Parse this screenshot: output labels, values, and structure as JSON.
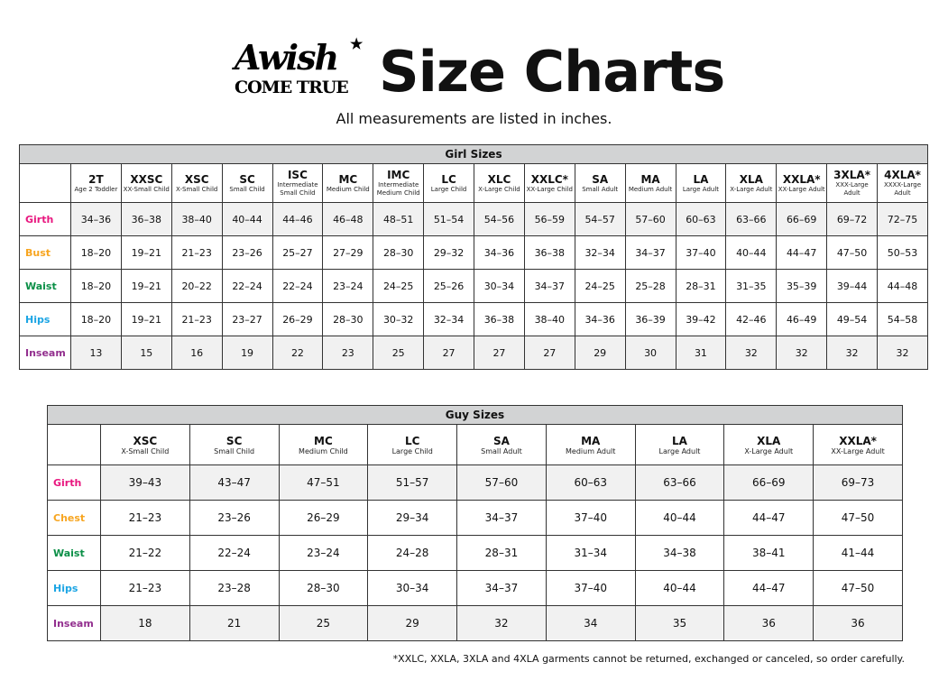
{
  "logo": {
    "line1": "Awish",
    "line2": "COME TRUE"
  },
  "title": "Size Charts",
  "subtitle": "All measurements are listed in inches.",
  "girl": {
    "title": "Girl Sizes",
    "sizes": [
      [
        "2T",
        "Age 2 Toddler"
      ],
      [
        "XXSC",
        "XX-Small Child"
      ],
      [
        "XSC",
        "X-Small Child"
      ],
      [
        "SC",
        "Small Child"
      ],
      [
        "ISC",
        "Intermediate Small Child"
      ],
      [
        "MC",
        "Medium Child"
      ],
      [
        "IMC",
        "Intermediate Medium Child"
      ],
      [
        "LC",
        "Large Child"
      ],
      [
        "XLC",
        "X-Large Child"
      ],
      [
        "XXLC*",
        "XX-Large Child"
      ],
      [
        "SA",
        "Small Adult"
      ],
      [
        "MA",
        "Medium Adult"
      ],
      [
        "LA",
        "Large Adult"
      ],
      [
        "XLA",
        "X-Large Adult"
      ],
      [
        "XXLA*",
        "XX-Large Adult"
      ],
      [
        "3XLA*",
        "XXX-Large Adult"
      ],
      [
        "4XLA*",
        "XXXX-Large Adult"
      ]
    ],
    "rows": [
      {
        "label": "Girth",
        "color": "#e8177f",
        "values": [
          "34–36",
          "36–38",
          "38–40",
          "40–44",
          "44–46",
          "46–48",
          "48–51",
          "51–54",
          "54–56",
          "56–59",
          "54–57",
          "57–60",
          "60–63",
          "63–66",
          "66–69",
          "69–72",
          "72–75"
        ]
      },
      {
        "label": "Bust",
        "color": "#f7a520",
        "values": [
          "18–20",
          "19–21",
          "21–23",
          "23–26",
          "25–27",
          "27–29",
          "28–30",
          "29–32",
          "34–36",
          "36–38",
          "32–34",
          "34–37",
          "37–40",
          "40–44",
          "44–47",
          "47–50",
          "50–53"
        ]
      },
      {
        "label": "Waist",
        "color": "#0b8f47",
        "values": [
          "18–20",
          "19–21",
          "20–22",
          "22–24",
          "22–24",
          "23–24",
          "24–25",
          "25–26",
          "30–34",
          "34–37",
          "24–25",
          "25–28",
          "28–31",
          "31–35",
          "35–39",
          "39–44",
          "44–48"
        ]
      },
      {
        "label": "Hips",
        "color": "#1ca5e4",
        "values": [
          "18–20",
          "19–21",
          "21–23",
          "23–27",
          "26–29",
          "28–30",
          "30–32",
          "32–34",
          "36–38",
          "38–40",
          "34–36",
          "36–39",
          "39–42",
          "42–46",
          "46–49",
          "49–54",
          "54–58"
        ]
      },
      {
        "label": "Inseam",
        "color": "#93308f",
        "values": [
          "13",
          "15",
          "16",
          "19",
          "22",
          "23",
          "25",
          "27",
          "27",
          "27",
          "29",
          "30",
          "31",
          "32",
          "32",
          "32",
          "32"
        ]
      }
    ]
  },
  "guy": {
    "title": "Guy Sizes",
    "sizes": [
      [
        "XSC",
        "X-Small Child"
      ],
      [
        "SC",
        "Small Child"
      ],
      [
        "MC",
        "Medium Child"
      ],
      [
        "LC",
        "Large Child"
      ],
      [
        "SA",
        "Small Adult"
      ],
      [
        "MA",
        "Medium Adult"
      ],
      [
        "LA",
        "Large Adult"
      ],
      [
        "XLA",
        "X-Large Adult"
      ],
      [
        "XXLA*",
        "XX-Large Adult"
      ]
    ],
    "rows": [
      {
        "label": "Girth",
        "color": "#e8177f",
        "values": [
          "39–43",
          "43–47",
          "47–51",
          "51–57",
          "57–60",
          "60–63",
          "63–66",
          "66–69",
          "69–73"
        ]
      },
      {
        "label": "Chest",
        "color": "#f7a520",
        "values": [
          "21–23",
          "23–26",
          "26–29",
          "29–34",
          "34–37",
          "37–40",
          "40–44",
          "44–47",
          "47–50"
        ]
      },
      {
        "label": "Waist",
        "color": "#0b8f47",
        "values": [
          "21–22",
          "22–24",
          "23–24",
          "24–28",
          "28–31",
          "31–34",
          "34–38",
          "38–41",
          "41–44"
        ]
      },
      {
        "label": "Hips",
        "color": "#1ca5e4",
        "values": [
          "21–23",
          "23–28",
          "28–30",
          "30–34",
          "34–37",
          "37–40",
          "40–44",
          "44–47",
          "47–50"
        ]
      },
      {
        "label": "Inseam",
        "color": "#93308f",
        "values": [
          "18",
          "21",
          "25",
          "29",
          "32",
          "34",
          "35",
          "36",
          "36"
        ]
      }
    ]
  },
  "footnote": "*XXLC, XXLA, 3XLA and 4XLA garments cannot be returned, exchanged or canceled, so order carefully."
}
